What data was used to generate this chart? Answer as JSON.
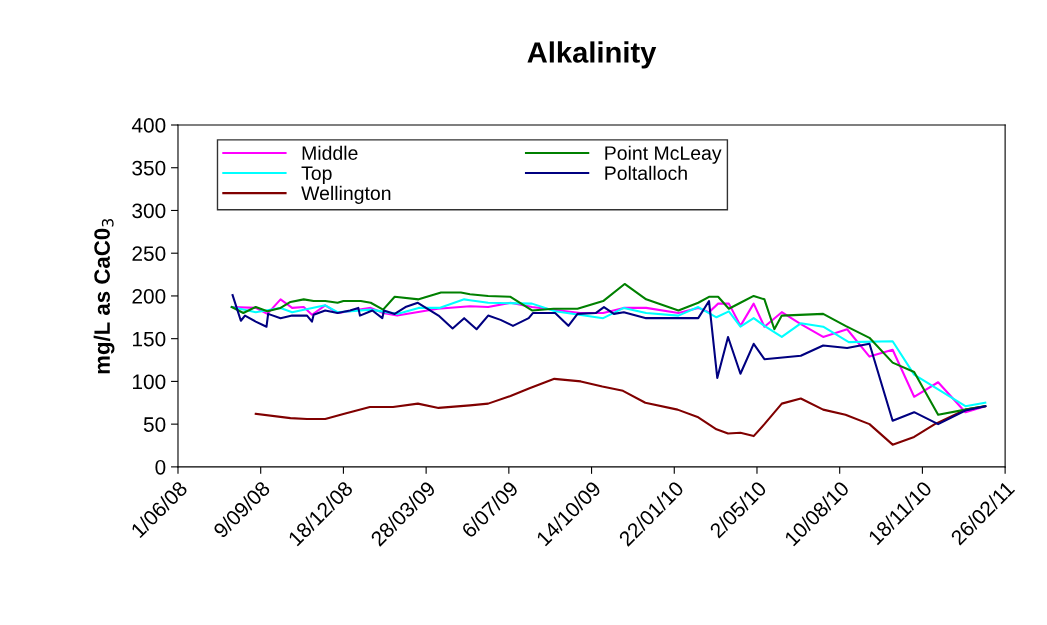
{
  "chart_data": {
    "type": "line",
    "title": "Alkalinity",
    "ylabel": "mg/L as CaC0$_{3}$",
    "xlim": [
      "2008-06-01",
      "2011-02-26"
    ],
    "xticks": [
      {
        "value": "2008-06-01",
        "label": "1/06/08"
      },
      {
        "value": "2008-09-09",
        "label": "9/09/08"
      },
      {
        "value": "2008-12-18",
        "label": "18/12/08"
      },
      {
        "value": "2009-03-28",
        "label": "28/03/09"
      },
      {
        "value": "2009-07-06",
        "label": "6/07/09"
      },
      {
        "value": "2009-10-14",
        "label": "14/10/09"
      },
      {
        "value": "2010-01-22",
        "label": "22/01/10"
      },
      {
        "value": "2010-05-02",
        "label": "2/05/10"
      },
      {
        "value": "2010-08-10",
        "label": "10/08/10"
      },
      {
        "value": "2010-11-18",
        "label": "18/11/10"
      },
      {
        "value": "2011-02-26",
        "label": "26/02/11"
      }
    ],
    "ylim": [
      0,
      400
    ],
    "yticks": [
      0,
      50,
      100,
      150,
      200,
      250,
      300,
      350,
      400
    ],
    "grid": false,
    "legend": "top left",
    "marker": "none",
    "line_style": "solid",
    "series": [
      {
        "name": "Middle",
        "color": "#ff00ff",
        "x": [
          "2008-08-05",
          "2008-09-03",
          "2008-09-17",
          "2008-10-03",
          "2008-10-17",
          "2008-10-31",
          "2008-11-10",
          "2008-11-26",
          "2008-12-11",
          "2009-01-20",
          "2009-02-04",
          "2009-02-21",
          "2009-04-11",
          "2009-05-20",
          "2009-06-11",
          "2009-07-08",
          "2009-08-03",
          "2009-09-30",
          "2009-10-28",
          "2009-11-22",
          "2009-12-19",
          "2010-01-27",
          "2010-02-20",
          "2010-03-05",
          "2010-03-16",
          "2010-03-29",
          "2010-04-12",
          "2010-04-28",
          "2010-05-11",
          "2010-06-01",
          "2010-06-24",
          "2010-07-21",
          "2010-08-19",
          "2010-09-15",
          "2010-10-13",
          "2010-11-08",
          "2010-12-07",
          "2011-01-09",
          "2011-02-02"
        ],
        "values": [
          187,
          186,
          179,
          196,
          186,
          187,
          178,
          189,
          180,
          186,
          180,
          177,
          185,
          188,
          187,
          192,
          187,
          180,
          180,
          186,
          186,
          180,
          186,
          181,
          191,
          191,
          165,
          191,
          164,
          181,
          167,
          152,
          161,
          129,
          137,
          82,
          99,
          64,
          71
        ]
      },
      {
        "name": "Top",
        "color": "#00ffff",
        "x": [
          "2008-08-05",
          "2008-09-03",
          "2008-10-03",
          "2008-10-17",
          "2008-11-26",
          "2008-12-11",
          "2009-01-20",
          "2009-02-21",
          "2009-03-19",
          "2009-04-13",
          "2009-05-13",
          "2009-05-20",
          "2009-06-11",
          "2009-08-03",
          "2009-08-31",
          "2009-10-28",
          "2009-11-22",
          "2009-12-19",
          "2010-01-27",
          "2010-02-20",
          "2010-03-14",
          "2010-03-29",
          "2010-04-12",
          "2010-04-28",
          "2010-05-11",
          "2010-06-01",
          "2010-06-24",
          "2010-07-21",
          "2010-08-21",
          "2010-10-13",
          "2010-11-08",
          "2011-01-09",
          "2011-02-02"
        ],
        "values": [
          187,
          181,
          186,
          181,
          189,
          181,
          184,
          179,
          186,
          186,
          196,
          195,
          192,
          191,
          182,
          174,
          186,
          180,
          177,
          187,
          175,
          182,
          164,
          174,
          165,
          152,
          168,
          164,
          146,
          147,
          108,
          71,
          75
        ]
      },
      {
        "name": "Wellington",
        "color": "#800000",
        "x": [
          "2008-09-03",
          "2008-10-15",
          "2008-11-04",
          "2008-11-26",
          "2008-12-18",
          "2009-01-19",
          "2009-02-16",
          "2009-03-18",
          "2009-04-12",
          "2009-05-20",
          "2009-06-11",
          "2009-07-08",
          "2009-07-31",
          "2009-08-30",
          "2009-10-01",
          "2009-10-27",
          "2009-11-21",
          "2009-12-18",
          "2010-01-26",
          "2010-02-20",
          "2010-03-14",
          "2010-03-28",
          "2010-04-12",
          "2010-04-28",
          "2010-05-11",
          "2010-06-01",
          "2010-06-24",
          "2010-07-21",
          "2010-08-17",
          "2010-09-15",
          "2010-10-13",
          "2010-11-08",
          "2010-12-03",
          "2011-01-09",
          "2011-02-02"
        ],
        "values": [
          62,
          57,
          56,
          56,
          62,
          70,
          70,
          74,
          69,
          72,
          74,
          83,
          92,
          103,
          100,
          94,
          89,
          75,
          67,
          58,
          44,
          39,
          40,
          36,
          50,
          74,
          80,
          67,
          61,
          50,
          26,
          35,
          50,
          67,
          71
        ]
      },
      {
        "name": "Point McLeay",
        "color": "#008000",
        "x": [
          "2008-08-05",
          "2008-08-19",
          "2008-09-03",
          "2008-09-17",
          "2008-10-03",
          "2008-10-15",
          "2008-10-31",
          "2008-11-12",
          "2008-11-26",
          "2008-12-11",
          "2008-12-18",
          "2009-01-08",
          "2009-01-20",
          "2009-02-04",
          "2009-02-18",
          "2009-03-19",
          "2009-04-15",
          "2009-05-09",
          "2009-05-20",
          "2009-06-11",
          "2009-07-08",
          "2009-08-03",
          "2009-08-29",
          "2009-09-27",
          "2009-10-28",
          "2009-11-23",
          "2009-12-19",
          "2010-01-27",
          "2010-02-20",
          "2010-03-05",
          "2010-03-16",
          "2010-03-29",
          "2010-04-12",
          "2010-04-28",
          "2010-05-11",
          "2010-05-23",
          "2010-06-01",
          "2010-07-21",
          "2010-08-17",
          "2010-09-15",
          "2010-10-13",
          "2010-11-08",
          "2010-12-07",
          "2011-01-09",
          "2011-02-02"
        ],
        "values": [
          187,
          180,
          187,
          182,
          186,
          193,
          196,
          194,
          194,
          192,
          194,
          194,
          192,
          184,
          199,
          196,
          204,
          204,
          202,
          200,
          199,
          183,
          185,
          185,
          194,
          214,
          196,
          183,
          192,
          199,
          199,
          185,
          192,
          200,
          196,
          161,
          177,
          179,
          165,
          151,
          122,
          111,
          61,
          67,
          71
        ]
      },
      {
        "name": "Poltalloch",
        "color": "#000080",
        "x": [
          "2008-08-06",
          "2008-08-16",
          "2008-08-21",
          "2008-09-03",
          "2008-09-16",
          "2008-09-18",
          "2008-10-03",
          "2008-10-17",
          "2008-11-04",
          "2008-11-10",
          "2008-11-12",
          "2008-11-26",
          "2008-12-11",
          "2008-12-26",
          "2009-01-05",
          "2009-01-07",
          "2009-01-22",
          "2009-02-03",
          "2009-02-05",
          "2009-02-18",
          "2009-03-03",
          "2009-03-18",
          "2009-04-12",
          "2009-04-29",
          "2009-05-13",
          "2009-05-28",
          "2009-06-11",
          "2009-06-26",
          "2009-07-11",
          "2009-07-30",
          "2009-08-04",
          "2009-08-31",
          "2009-09-16",
          "2009-09-27",
          "2009-10-19",
          "2009-10-29",
          "2009-11-10",
          "2009-11-22",
          "2009-12-19",
          "2010-02-20",
          "2010-03-05",
          "2010-03-15",
          "2010-03-28",
          "2010-04-12",
          "2010-04-28",
          "2010-05-11",
          "2010-06-24",
          "2010-07-21",
          "2010-08-19",
          "2010-09-15",
          "2010-10-13",
          "2010-11-08",
          "2010-12-07",
          "2011-01-09",
          "2011-02-02"
        ],
        "values": [
          201,
          171,
          177,
          170,
          164,
          179,
          174,
          177,
          177,
          170,
          178,
          183,
          180,
          183,
          186,
          177,
          183,
          174,
          183,
          179,
          187,
          192,
          177,
          162,
          174,
          161,
          177,
          172,
          165,
          174,
          180,
          180,
          165,
          179,
          180,
          187,
          179,
          181,
          174,
          174,
          194,
          104,
          152,
          109,
          144,
          126,
          130,
          142,
          139,
          144,
          54,
          64,
          50,
          66,
          71
        ]
      }
    ]
  }
}
